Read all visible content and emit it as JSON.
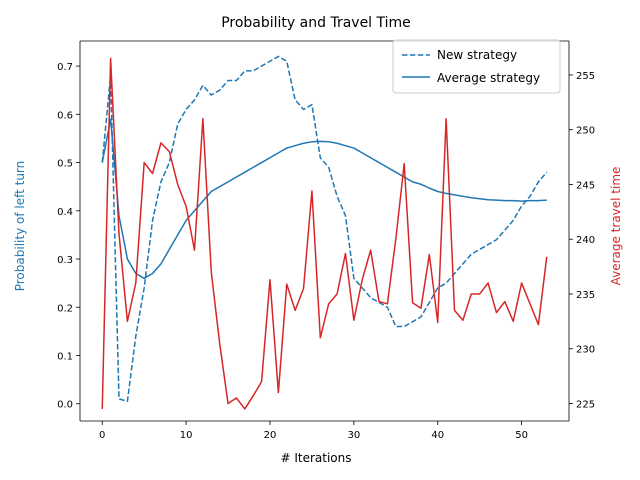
{
  "chart_data": {
    "type": "line",
    "title": "Probability and Travel Time",
    "xlabel": "# Iterations",
    "ylabel_left": "Probability of left turn",
    "ylabel_right": "Average travel time",
    "xlim": [
      -2.65,
      55.65
    ],
    "ylim_left": [
      -0.0358,
      0.752
    ],
    "ylim_right": [
      223.4,
      258.1
    ],
    "xticks": [
      0,
      10,
      20,
      30,
      40,
      50
    ],
    "yticks_left": [
      0.0,
      0.1,
      0.2,
      0.3,
      0.4,
      0.5,
      0.6,
      0.7
    ],
    "yticks_right": [
      225,
      230,
      235,
      240,
      245,
      250,
      255
    ],
    "legend_position": "upper right",
    "grid": false,
    "colors": {
      "left_axis": "#1f77b4",
      "right_axis": "#d62728"
    },
    "x": [
      0,
      1,
      2,
      3,
      4,
      5,
      6,
      7,
      8,
      9,
      10,
      11,
      12,
      13,
      14,
      15,
      16,
      17,
      18,
      19,
      20,
      21,
      22,
      23,
      24,
      25,
      26,
      27,
      28,
      29,
      30,
      31,
      32,
      33,
      34,
      35,
      36,
      37,
      38,
      39,
      40,
      41,
      42,
      43,
      44,
      45,
      46,
      47,
      48,
      49,
      50,
      51,
      52,
      53
    ],
    "series": [
      {
        "name": "New strategy",
        "axis": "left",
        "style": "dashed",
        "color": "#1f77b4",
        "values": [
          0.5,
          0.68,
          0.01,
          0.005,
          0.14,
          0.24,
          0.38,
          0.46,
          0.5,
          0.58,
          0.61,
          0.63,
          0.66,
          0.64,
          0.65,
          0.67,
          0.67,
          0.69,
          0.69,
          0.7,
          0.71,
          0.72,
          0.71,
          0.63,
          0.61,
          0.62,
          0.51,
          0.49,
          0.43,
          0.39,
          0.26,
          0.24,
          0.22,
          0.21,
          0.2,
          0.16,
          0.16,
          0.17,
          0.18,
          0.21,
          0.24,
          0.25,
          0.27,
          0.29,
          0.31,
          0.32,
          0.33,
          0.34,
          0.36,
          0.38,
          0.41,
          0.43,
          0.46,
          0.48
        ]
      },
      {
        "name": "Average strategy",
        "axis": "left",
        "style": "solid",
        "color": "#1f77b4",
        "values": [
          0.5,
          0.59,
          0.39,
          0.3,
          0.27,
          0.26,
          0.27,
          0.29,
          0.32,
          0.35,
          0.38,
          0.4,
          0.42,
          0.44,
          0.45,
          0.46,
          0.47,
          0.48,
          0.49,
          0.5,
          0.51,
          0.52,
          0.53,
          0.535,
          0.54,
          0.543,
          0.544,
          0.543,
          0.54,
          0.535,
          0.53,
          0.52,
          0.51,
          0.5,
          0.49,
          0.48,
          0.47,
          0.46,
          0.455,
          0.447,
          0.44,
          0.436,
          0.433,
          0.43,
          0.427,
          0.425,
          0.423,
          0.422,
          0.421,
          0.421,
          0.42,
          0.421,
          0.421,
          0.422
        ]
      },
      {
        "name": "Average travel time",
        "axis": "right",
        "style": "solid",
        "color": "#d62728",
        "values": [
          224.5,
          256.5,
          240.5,
          232.5,
          236.0,
          247.0,
          246.0,
          248.8,
          248.0,
          245.0,
          243.0,
          239.0,
          251.0,
          237.0,
          230.5,
          225.0,
          225.5,
          224.5,
          225.7,
          227.0,
          236.3,
          226.0,
          235.9,
          233.5,
          235.5,
          244.4,
          231.0,
          234.1,
          235.0,
          238.7,
          232.6,
          236.3,
          239.0,
          234.3,
          234.1,
          240.0,
          246.9,
          234.2,
          233.7,
          238.6,
          232.4,
          251.0,
          233.5,
          232.6,
          235.0,
          235.0,
          236.0,
          233.3,
          234.3,
          232.5,
          236.0,
          234.1,
          232.2,
          238.4
        ]
      }
    ]
  }
}
